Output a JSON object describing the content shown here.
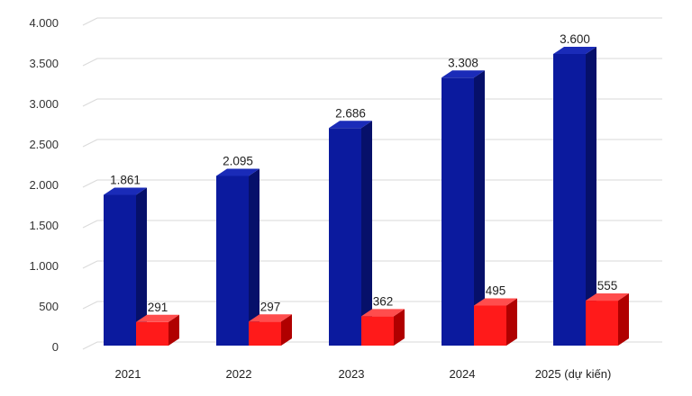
{
  "chart_data": {
    "type": "bar",
    "style": "3d-clustered-column",
    "categories": [
      "2021",
      "2022",
      "2023",
      "2024",
      "2025 (dự kiến)"
    ],
    "series": [
      {
        "values": [
          1861,
          2095,
          2686,
          3308,
          3600
        ],
        "labels": [
          "1.861",
          "2.095",
          "2.686",
          "3.308",
          "3.600"
        ]
      },
      {
        "values": [
          291,
          297,
          362,
          495,
          555
        ],
        "labels": [
          "291",
          "297",
          "362",
          "495",
          "555"
        ]
      }
    ],
    "ylim": [
      0,
      4000
    ],
    "yticks": [
      0,
      500,
      1000,
      1500,
      2000,
      2500,
      3000,
      3500,
      4000
    ],
    "ytick_labels": [
      "0",
      "500",
      "1.000",
      "1.500",
      "2.000",
      "2.500",
      "3.000",
      "3.500",
      "4.000"
    ],
    "grid": true,
    "legend": "none",
    "title": "",
    "xlabel": "",
    "ylabel": ""
  },
  "colors": {
    "series_0_front": "#0b1a9e",
    "series_0_side": "#06106a",
    "series_0_top": "#1a2bb8",
    "series_1_front": "#ff1a1a",
    "series_1_side": "#b00000",
    "series_1_top": "#ff4d4d"
  }
}
